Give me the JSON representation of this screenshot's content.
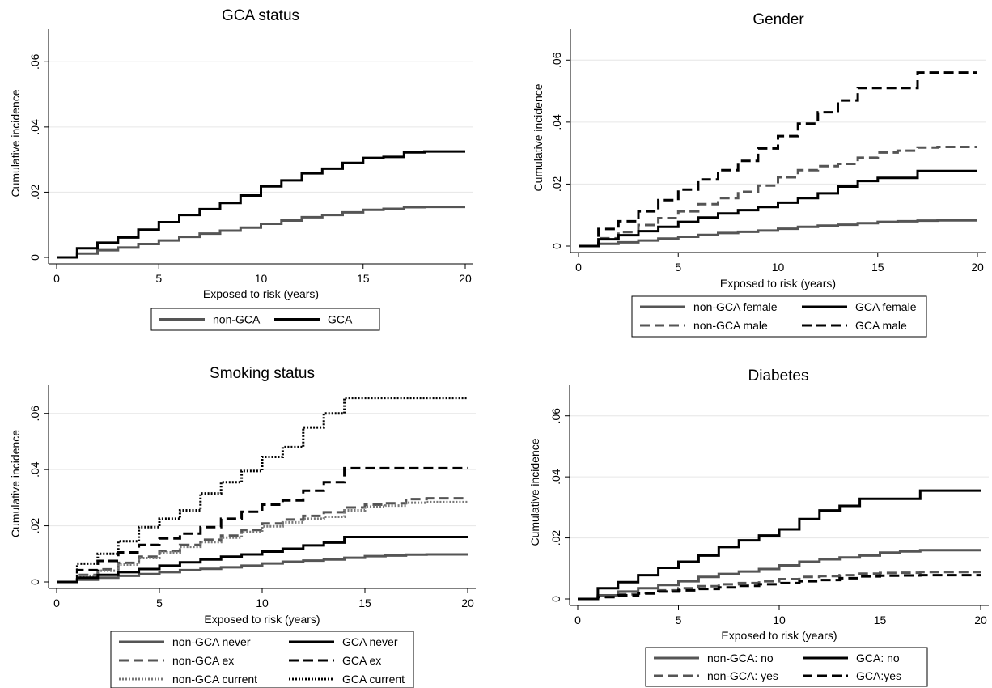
{
  "chart_data": [
    {
      "type": "line",
      "title": "GCA status",
      "xlabel": "Exposed to risk (years)",
      "ylabel": "Cumulative incidence",
      "xlim": [
        0,
        20
      ],
      "ylim": [
        0,
        0.07
      ],
      "xticks": [
        "0",
        "5",
        "10",
        "15",
        "20"
      ],
      "yticks": [
        "0",
        ".02",
        ".04",
        ".06"
      ],
      "grid": true,
      "legend_position": "bottom",
      "series": [
        {
          "name": "non-GCA",
          "color": "#555555",
          "dash": "solid",
          "x": [
            0,
            1,
            2,
            3,
            4,
            5,
            6,
            7,
            8,
            9,
            10,
            11,
            12,
            13,
            14,
            15,
            16,
            17,
            18,
            19,
            20
          ],
          "y": [
            0,
            0.0012,
            0.0022,
            0.003,
            0.0041,
            0.0052,
            0.0063,
            0.0073,
            0.0082,
            0.0091,
            0.0103,
            0.0113,
            0.0123,
            0.013,
            0.0138,
            0.0146,
            0.0149,
            0.0154,
            0.0155,
            0.0155,
            0.0155
          ]
        },
        {
          "name": "GCA",
          "color": "#000000",
          "dash": "solid",
          "x": [
            0,
            1,
            2,
            3,
            4,
            5,
            6,
            7,
            8,
            9,
            10,
            11,
            12,
            13,
            14,
            15,
            16,
            17,
            18,
            19,
            20
          ],
          "y": [
            0,
            0.0028,
            0.0045,
            0.0061,
            0.0085,
            0.0108,
            0.013,
            0.0148,
            0.0167,
            0.019,
            0.0218,
            0.0236,
            0.0258,
            0.0272,
            0.029,
            0.0305,
            0.0308,
            0.0322,
            0.0325,
            0.0325,
            0.0325
          ]
        }
      ]
    },
    {
      "type": "line",
      "title": "Gender",
      "xlabel": "Exposed to risk (years)",
      "ylabel": "Cumulative incidence",
      "xlim": [
        0,
        20
      ],
      "ylim": [
        0,
        0.07
      ],
      "xticks": [
        "0",
        "5",
        "10",
        "15",
        "20"
      ],
      "yticks": [
        "0",
        ".02",
        ".04",
        ".06"
      ],
      "grid": true,
      "legend_position": "bottom",
      "series": [
        {
          "name": "non-GCA female",
          "color": "#555555",
          "dash": "solid",
          "x": [
            0,
            1,
            2,
            3,
            4,
            5,
            6,
            7,
            8,
            9,
            10,
            11,
            12,
            13,
            14,
            15,
            16,
            17,
            18,
            19,
            20
          ],
          "y": [
            0,
            0.0007,
            0.0012,
            0.0018,
            0.0024,
            0.003,
            0.0036,
            0.0042,
            0.0046,
            0.005,
            0.0056,
            0.0062,
            0.0066,
            0.0069,
            0.0074,
            0.0078,
            0.008,
            0.0082,
            0.0083,
            0.0083,
            0.0083
          ]
        },
        {
          "name": "non-GCA male",
          "color": "#555555",
          "dash": "dashed",
          "x": [
            0,
            1,
            2,
            3,
            4,
            5,
            6,
            7,
            8,
            9,
            10,
            11,
            12,
            13,
            14,
            15,
            16,
            17,
            18,
            19,
            20
          ],
          "y": [
            0,
            0.0025,
            0.0045,
            0.0068,
            0.009,
            0.0112,
            0.0135,
            0.0155,
            0.0175,
            0.0195,
            0.0222,
            0.0245,
            0.0258,
            0.0265,
            0.0285,
            0.0302,
            0.0308,
            0.0318,
            0.032,
            0.032,
            0.032
          ]
        },
        {
          "name": "GCA female",
          "color": "#000000",
          "dash": "solid",
          "x": [
            0,
            1,
            2,
            3,
            4,
            5,
            6,
            7,
            8,
            9,
            10,
            11,
            12,
            13,
            14,
            15,
            16,
            17,
            18,
            19,
            20
          ],
          "y": [
            0,
            0.0022,
            0.0035,
            0.0048,
            0.0062,
            0.0078,
            0.0092,
            0.0105,
            0.0116,
            0.0126,
            0.014,
            0.0155,
            0.017,
            0.0192,
            0.021,
            0.022,
            0.022,
            0.0242,
            0.0242,
            0.0242,
            0.0242
          ]
        },
        {
          "name": "GCA male",
          "color": "#000000",
          "dash": "dashed",
          "x": [
            0,
            1,
            2,
            3,
            4,
            5,
            6,
            7,
            8,
            9,
            10,
            11,
            12,
            13,
            14,
            15,
            16,
            17,
            18,
            19,
            20
          ],
          "y": [
            0,
            0.0055,
            0.008,
            0.0112,
            0.0148,
            0.0182,
            0.0215,
            0.0245,
            0.0275,
            0.0315,
            0.0355,
            0.0395,
            0.0432,
            0.047,
            0.051,
            0.051,
            0.051,
            0.056,
            0.056,
            0.056,
            0.056
          ]
        }
      ]
    },
    {
      "type": "line",
      "title": "Smoking status",
      "xlabel": "Exposed to risk (years)",
      "ylabel": "Cumulative incidence",
      "xlim": [
        0,
        20
      ],
      "ylim": [
        0,
        0.07
      ],
      "xticks": [
        "0",
        "5",
        "10",
        "15",
        "20"
      ],
      "yticks": [
        "0",
        ".02",
        ".04",
        ".06"
      ],
      "grid": true,
      "legend_position": "bottom",
      "series": [
        {
          "name": "non-GCA never",
          "color": "#555555",
          "dash": "solid",
          "x": [
            0,
            1,
            2,
            3,
            4,
            5,
            6,
            7,
            8,
            9,
            10,
            11,
            12,
            13,
            14,
            15,
            16,
            17,
            18,
            19,
            20
          ],
          "y": [
            0,
            0.0008,
            0.0015,
            0.0022,
            0.0028,
            0.0035,
            0.0042,
            0.0047,
            0.0052,
            0.0058,
            0.0066,
            0.0072,
            0.0076,
            0.008,
            0.0086,
            0.0092,
            0.0094,
            0.0097,
            0.0098,
            0.0098,
            0.0098
          ]
        },
        {
          "name": "non-GCA ex",
          "color": "#555555",
          "dash": "dashed",
          "x": [
            0,
            1,
            2,
            3,
            4,
            5,
            6,
            7,
            8,
            9,
            10,
            11,
            12,
            13,
            14,
            15,
            16,
            17,
            18,
            19,
            20
          ],
          "y": [
            0,
            0.0025,
            0.0045,
            0.0068,
            0.009,
            0.011,
            0.0132,
            0.015,
            0.0165,
            0.0185,
            0.0208,
            0.0222,
            0.0235,
            0.0248,
            0.0265,
            0.0275,
            0.028,
            0.0295,
            0.0298,
            0.0298,
            0.0298
          ]
        },
        {
          "name": "non-GCA current",
          "color": "#777777",
          "dash": "dotted",
          "x": [
            0,
            1,
            2,
            3,
            4,
            5,
            6,
            7,
            8,
            9,
            10,
            11,
            12,
            13,
            14,
            15,
            16,
            17,
            18,
            19,
            20
          ],
          "y": [
            0,
            0.0022,
            0.004,
            0.0062,
            0.0085,
            0.0105,
            0.0125,
            0.0142,
            0.0158,
            0.0178,
            0.0198,
            0.0212,
            0.0225,
            0.0232,
            0.0255,
            0.0268,
            0.0272,
            0.0282,
            0.0284,
            0.0284,
            0.0284
          ]
        },
        {
          "name": "GCA never",
          "color": "#000000",
          "dash": "solid",
          "x": [
            0,
            1,
            2,
            3,
            4,
            5,
            6,
            7,
            8,
            9,
            10,
            11,
            12,
            13,
            14,
            15,
            16,
            17,
            18,
            19,
            20
          ],
          "y": [
            0,
            0.0015,
            0.0025,
            0.0035,
            0.0046,
            0.0058,
            0.007,
            0.008,
            0.009,
            0.0098,
            0.0108,
            0.0118,
            0.013,
            0.014,
            0.016,
            0.016,
            0.016,
            0.016,
            0.016,
            0.016,
            0.016
          ]
        },
        {
          "name": "GCA ex",
          "color": "#000000",
          "dash": "dashed",
          "x": [
            0,
            1,
            2,
            3,
            4,
            5,
            6,
            7,
            8,
            9,
            10,
            11,
            12,
            13,
            14,
            15,
            16,
            17,
            18,
            19,
            20
          ],
          "y": [
            0,
            0.0042,
            0.0075,
            0.0105,
            0.0132,
            0.0155,
            0.0172,
            0.0195,
            0.0225,
            0.025,
            0.0275,
            0.029,
            0.0325,
            0.0355,
            0.0405,
            0.0405,
            0.0405,
            0.0405,
            0.0405,
            0.0405,
            0.0405
          ]
        },
        {
          "name": "GCA current",
          "color": "#000000",
          "dash": "dotted",
          "x": [
            0,
            1,
            2,
            3,
            4,
            5,
            6,
            7,
            8,
            9,
            10,
            11,
            12,
            13,
            14,
            15,
            16,
            17,
            18,
            19,
            20
          ],
          "y": [
            0,
            0.0065,
            0.01,
            0.0145,
            0.0195,
            0.0225,
            0.0255,
            0.0315,
            0.0355,
            0.0395,
            0.0445,
            0.048,
            0.055,
            0.06,
            0.0655,
            0.0655,
            0.0655,
            0.0655,
            0.0655,
            0.0655,
            0.0655
          ]
        }
      ]
    },
    {
      "type": "line",
      "title": "Diabetes",
      "xlabel": "Exposed to risk (years)",
      "ylabel": "Cumulative incidence",
      "xlim": [
        0,
        20
      ],
      "ylim": [
        0,
        0.07
      ],
      "xticks": [
        "0",
        "5",
        "10",
        "15",
        "20"
      ],
      "yticks": [
        "0",
        ".02",
        ".04",
        ".06"
      ],
      "grid": true,
      "legend_position": "bottom",
      "series": [
        {
          "name": "non-GCA: no",
          "color": "#555555",
          "dash": "solid",
          "x": [
            0,
            1,
            2,
            3,
            4,
            5,
            6,
            7,
            8,
            9,
            10,
            11,
            12,
            13,
            14,
            15,
            16,
            17,
            18,
            19,
            20
          ],
          "y": [
            0,
            0.0012,
            0.0024,
            0.0035,
            0.0046,
            0.0058,
            0.0072,
            0.0082,
            0.009,
            0.0098,
            0.011,
            0.0122,
            0.013,
            0.0136,
            0.0142,
            0.0152,
            0.0156,
            0.016,
            0.016,
            0.016,
            0.016
          ]
        },
        {
          "name": "non-GCA: yes",
          "color": "#555555",
          "dash": "dashed",
          "x": [
            0,
            1,
            2,
            3,
            4,
            5,
            6,
            7,
            8,
            9,
            10,
            11,
            12,
            13,
            14,
            15,
            16,
            17,
            18,
            19,
            20
          ],
          "y": [
            0,
            0.0008,
            0.0015,
            0.002,
            0.0028,
            0.0035,
            0.0042,
            0.0048,
            0.0052,
            0.0058,
            0.0065,
            0.0072,
            0.0075,
            0.0078,
            0.0083,
            0.0085,
            0.0086,
            0.0088,
            0.0088,
            0.0088,
            0.0088
          ]
        },
        {
          "name": "GCA: no",
          "color": "#000000",
          "dash": "solid",
          "x": [
            0,
            1,
            2,
            3,
            4,
            5,
            6,
            7,
            8,
            9,
            10,
            11,
            12,
            13,
            14,
            15,
            16,
            17,
            18,
            19,
            20
          ],
          "y": [
            0,
            0.0035,
            0.0055,
            0.0078,
            0.0102,
            0.0122,
            0.0142,
            0.017,
            0.0192,
            0.0208,
            0.0228,
            0.0262,
            0.029,
            0.0305,
            0.0328,
            0.0328,
            0.0328,
            0.0355,
            0.0355,
            0.0355,
            0.0355
          ]
        },
        {
          "name": "GCA:yes",
          "color": "#000000",
          "dash": "dashed",
          "x": [
            0,
            1,
            2,
            3,
            4,
            5,
            6,
            7,
            8,
            9,
            10,
            11,
            12,
            13,
            14,
            15,
            16,
            17,
            18,
            19,
            20
          ],
          "y": [
            0,
            0.0006,
            0.0012,
            0.0018,
            0.0024,
            0.0028,
            0.0033,
            0.0038,
            0.0043,
            0.0048,
            0.0052,
            0.0058,
            0.0062,
            0.0068,
            0.0074,
            0.0076,
            0.0077,
            0.0078,
            0.0078,
            0.0078,
            0.0078
          ]
        }
      ]
    }
  ]
}
